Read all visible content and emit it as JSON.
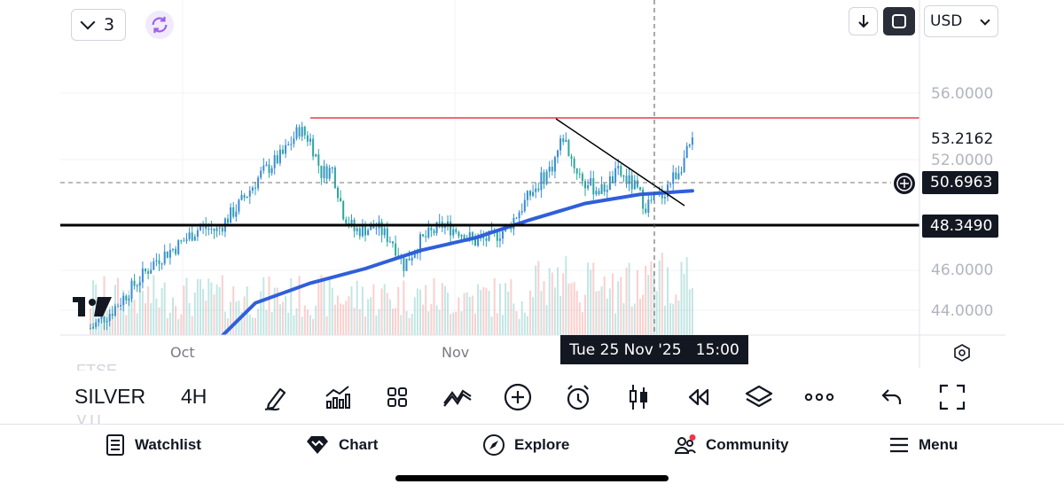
{
  "top_controls": {
    "interval_count": "3",
    "currency": "USD"
  },
  "price_axis": {
    "labels": [
      "56.0000",
      "52.0000",
      "46.0000",
      "44.0000"
    ],
    "current_price": "53.2162",
    "crosshair_price": "50.6963",
    "line_price": "48.3490"
  },
  "time_axis": {
    "labels": [
      "Oct",
      "Nov"
    ],
    "crosshair_time": "Tue 25 Nov '25   15:00"
  },
  "watermark_text": {
    "above": "FTSE",
    "below": "VTI"
  },
  "symbol": {
    "name": "SILVER",
    "interval": "4H"
  },
  "toolbar_icons": [
    "pen-icon",
    "indicators-icon",
    "templates-icon",
    "compare-icon",
    "add-icon",
    "alert-icon",
    "chart-type-icon",
    "replay-icon",
    "layers-icon",
    "more-icon",
    "undo-icon",
    "fullscreen-icon"
  ],
  "nav": {
    "watchlist": "Watchlist",
    "chart": "Chart",
    "explore": "Explore",
    "community": "Community",
    "menu": "Menu"
  },
  "colors": {
    "up": "#26a69a",
    "down": "#ef5350",
    "candle_up": "#3b8ad9",
    "candle_down": "#2ba79a",
    "moving_average": "#2f5fd9",
    "resistance_line": "#f23645",
    "support_line": "#000000",
    "tag_bg": "#131722"
  },
  "chart_data": {
    "type": "candlestick",
    "symbol": "SILVER",
    "interval": "4H",
    "ylim": [
      42.8,
      57.2
    ],
    "x_ticks": [
      "Oct",
      "Nov"
    ],
    "close_path": [
      {
        "i": 0,
        "c": 43.0
      },
      {
        "i": 8,
        "c": 44.0
      },
      {
        "i": 16,
        "c": 45.4
      },
      {
        "i": 24,
        "c": 46.8
      },
      {
        "i": 32,
        "c": 47.6
      },
      {
        "i": 40,
        "c": 48.6
      },
      {
        "i": 46,
        "c": 48.4
      },
      {
        "i": 54,
        "c": 49.8
      },
      {
        "i": 62,
        "c": 51.5
      },
      {
        "i": 70,
        "c": 52.6
      },
      {
        "i": 76,
        "c": 54.0
      },
      {
        "i": 80,
        "c": 53.4
      },
      {
        "i": 84,
        "c": 51.6
      },
      {
        "i": 88,
        "c": 51.8
      },
      {
        "i": 92,
        "c": 49.4
      },
      {
        "i": 96,
        "c": 48.4
      },
      {
        "i": 104,
        "c": 48.6
      },
      {
        "i": 110,
        "c": 47.8
      },
      {
        "i": 114,
        "c": 46.5
      },
      {
        "i": 120,
        "c": 47.8
      },
      {
        "i": 128,
        "c": 48.7
      },
      {
        "i": 134,
        "c": 48.4
      },
      {
        "i": 140,
        "c": 47.8
      },
      {
        "i": 146,
        "c": 48.0
      },
      {
        "i": 152,
        "c": 48.6
      },
      {
        "i": 160,
        "c": 50.4
      },
      {
        "i": 168,
        "c": 52.0
      },
      {
        "i": 172,
        "c": 53.6
      },
      {
        "i": 176,
        "c": 52.0
      },
      {
        "i": 180,
        "c": 51.0
      },
      {
        "i": 186,
        "c": 50.6
      },
      {
        "i": 192,
        "c": 51.6
      },
      {
        "i": 198,
        "c": 50.8
      },
      {
        "i": 202,
        "c": 49.8
      },
      {
        "i": 208,
        "c": 50.4
      },
      {
        "i": 214,
        "c": 51.8
      },
      {
        "i": 219,
        "c": 53.2
      }
    ],
    "moving_average_path": [
      {
        "i": 0,
        "v": 41.0
      },
      {
        "i": 40,
        "v": 41.4
      },
      {
        "i": 60,
        "v": 44.4
      },
      {
        "i": 80,
        "v": 45.5
      },
      {
        "i": 100,
        "v": 46.3
      },
      {
        "i": 120,
        "v": 47.3
      },
      {
        "i": 140,
        "v": 48.0
      },
      {
        "i": 160,
        "v": 49.0
      },
      {
        "i": 180,
        "v": 49.9
      },
      {
        "i": 200,
        "v": 50.4
      },
      {
        "i": 219,
        "v": 50.6
      }
    ],
    "horizontal_lines": [
      {
        "name": "resistance",
        "price": 54.2
      },
      {
        "name": "support",
        "price": 48.349
      }
    ],
    "trend_line": {
      "from": {
        "i": 172,
        "price": 54.0
      },
      "to": {
        "i": 227,
        "price": 49.9
      }
    },
    "crosshair": {
      "price": 50.6963,
      "time": "Tue 25 Nov '25 15:00"
    }
  }
}
